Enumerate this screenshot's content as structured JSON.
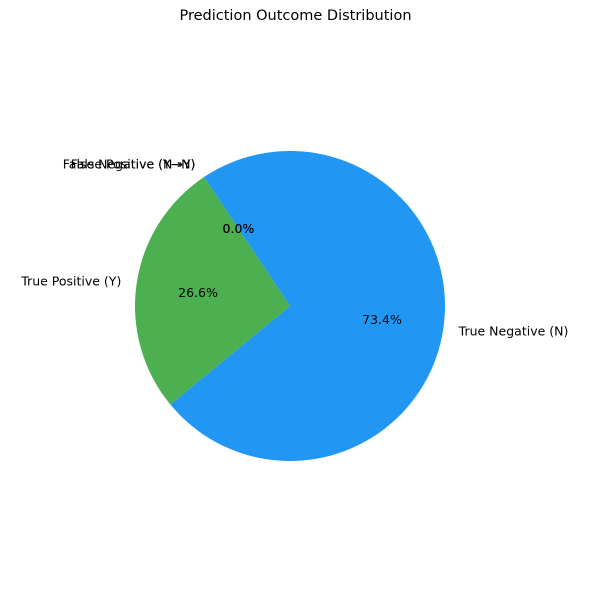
{
  "chart_data": {
    "type": "pie",
    "title": "Prediction Outcome Distribution",
    "slices": [
      {
        "label": "True Negative (N)",
        "value": 73.4,
        "pct_label": "73.4%",
        "color": "#2196f3"
      },
      {
        "label": "True Positive (Y)",
        "value": 26.6,
        "pct_label": "26.6%",
        "color": "#4caf50"
      },
      {
        "label": "False Negative (Y→N)",
        "value": 0.0,
        "pct_label": "0.0%",
        "color": "#f44336"
      },
      {
        "label": "False Positive (N→Y)",
        "value": 0.0,
        "pct_label": "0.0%",
        "color": "#ff9800"
      }
    ]
  }
}
